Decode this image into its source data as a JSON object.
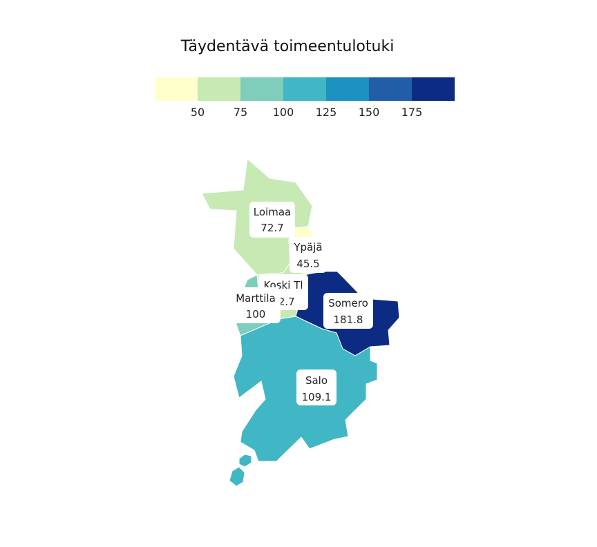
{
  "title": "Täydentävä toimeentulotuki",
  "legend": {
    "colors": [
      "#ffffcc",
      "#c7e9b4",
      "#7fcdbb",
      "#41b6c4",
      "#1d91c0",
      "#225ea8",
      "#0c2c84"
    ],
    "ticks": [
      "50",
      "75",
      "100",
      "125",
      "150",
      "175"
    ]
  },
  "regions": [
    {
      "name": "Loimaa",
      "value": "72.7",
      "color": "#c7e9b4"
    },
    {
      "name": "Ypäjä",
      "value": "45.5",
      "color": "#ffffcc"
    },
    {
      "name": "Koski Tl",
      "value": "72.7",
      "color": "#c7e9b4"
    },
    {
      "name": "Marttila",
      "value": "100",
      "color": "#7fcdbb"
    },
    {
      "name": "Somero",
      "value": "181.8",
      "color": "#0c2c84"
    },
    {
      "name": "Salo",
      "value": "109.1",
      "color": "#41b6c4"
    }
  ]
}
